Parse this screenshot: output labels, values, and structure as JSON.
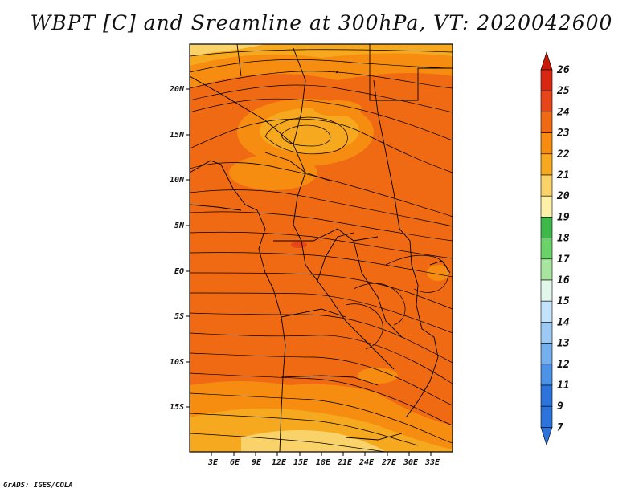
{
  "title": "WBPT [C] and Sreamline at 300hPa, VT: 2020042600",
  "credit": "GrADS: IGES/COLA",
  "map": {
    "lon_range": [
      -1,
      35
    ],
    "lat_range": [
      -20,
      24
    ],
    "lon_ticks": [
      "3E",
      "6E",
      "9E",
      "12E",
      "15E",
      "18E",
      "21E",
      "24E",
      "27E",
      "30E",
      "33E"
    ],
    "lat_ticks": [
      "20N",
      "15N",
      "10N",
      "5N",
      "EQ",
      "5S",
      "10S",
      "15S"
    ],
    "dominant_fill_color": "#f06a14"
  },
  "colorbar": {
    "labels": [
      "26",
      "25",
      "24",
      "23",
      "22",
      "21",
      "20",
      "19",
      "18",
      "17",
      "16",
      "15",
      "14",
      "13",
      "12",
      "11",
      "9",
      "7"
    ],
    "colors": [
      "#c81808",
      "#d82812",
      "#e6461a",
      "#f06a14",
      "#f68c10",
      "#f6a81e",
      "#fad26a",
      "#fdf0a8",
      "#3fb84a",
      "#6ad268",
      "#a8e6a0",
      "#e2f6ec",
      "#c4e2fa",
      "#9ccaf4",
      "#74b0ee",
      "#4c92e6",
      "#2c74dc",
      "#2c74dc"
    ]
  }
}
